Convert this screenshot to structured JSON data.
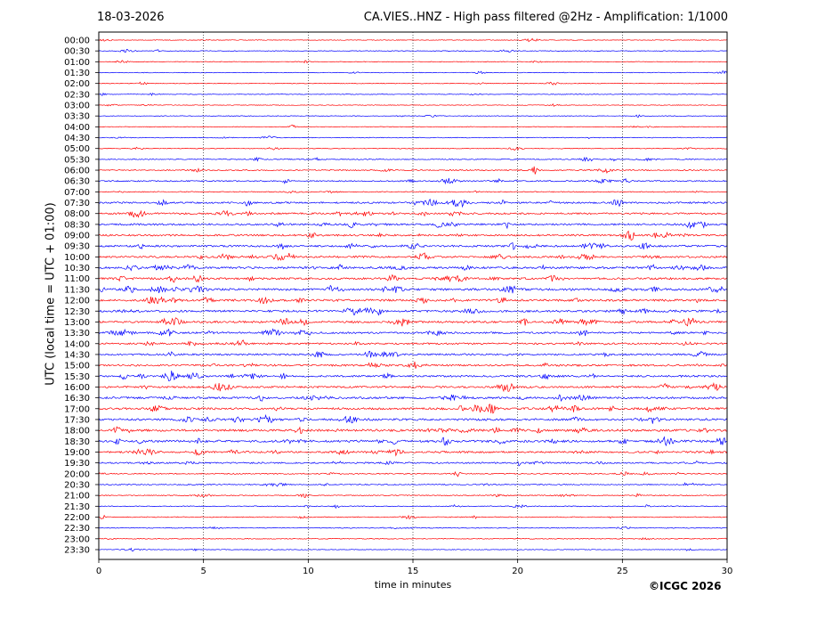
{
  "header": {
    "date": "18-03-2026",
    "title": "CA.VIES..HNZ - High pass filtered @2Hz - Amplification: 1/1000"
  },
  "footer": {
    "copyright": "©ICGC 2026"
  },
  "colors": {
    "series_a": "#ff0000",
    "series_b": "#0000ff",
    "axis": "#000000"
  },
  "chart_data": {
    "type": "line",
    "subtype": "helicorder",
    "xlabel": "time in minutes",
    "ylabel": "UTC (local time = UTC + 01:00)",
    "xlim": [
      0,
      30
    ],
    "x_ticks": [
      0,
      5,
      10,
      15,
      20,
      25,
      30
    ],
    "x_tick_labels": [
      "0",
      "5",
      "10",
      "15",
      "20",
      "25",
      "30"
    ],
    "vertical_grid": [
      5,
      10,
      15,
      20,
      25
    ],
    "grid_style": "dotted",
    "color_sequence": [
      "#ff0000",
      "#0000ff"
    ],
    "rows": [
      {
        "label": "00:00",
        "activity": 0.08,
        "color": "#ff0000"
      },
      {
        "label": "00:30",
        "activity": 0.1,
        "color": "#0000ff"
      },
      {
        "label": "01:00",
        "activity": 0.09,
        "color": "#ff0000"
      },
      {
        "label": "01:30",
        "activity": 0.1,
        "color": "#0000ff"
      },
      {
        "label": "02:00",
        "activity": 0.1,
        "color": "#ff0000"
      },
      {
        "label": "02:30",
        "activity": 0.08,
        "color": "#0000ff"
      },
      {
        "label": "03:00",
        "activity": 0.07,
        "color": "#ff0000"
      },
      {
        "label": "03:30",
        "activity": 0.07,
        "color": "#0000ff"
      },
      {
        "label": "04:00",
        "activity": 0.07,
        "color": "#ff0000"
      },
      {
        "label": "04:30",
        "activity": 0.14,
        "color": "#0000ff"
      },
      {
        "label": "05:00",
        "activity": 0.12,
        "color": "#ff0000"
      },
      {
        "label": "05:30",
        "activity": 0.22,
        "color": "#0000ff"
      },
      {
        "label": "06:00",
        "activity": 0.3,
        "color": "#ff0000"
      },
      {
        "label": "06:30",
        "activity": 0.35,
        "color": "#0000ff"
      },
      {
        "label": "07:00",
        "activity": 0.22,
        "color": "#ff0000"
      },
      {
        "label": "07:30",
        "activity": 0.55,
        "color": "#0000ff"
      },
      {
        "label": "08:00",
        "activity": 0.55,
        "color": "#ff0000"
      },
      {
        "label": "08:30",
        "activity": 0.6,
        "color": "#0000ff"
      },
      {
        "label": "09:00",
        "activity": 0.6,
        "color": "#ff0000"
      },
      {
        "label": "09:30",
        "activity": 0.62,
        "color": "#0000ff"
      },
      {
        "label": "10:00",
        "activity": 0.62,
        "color": "#ff0000"
      },
      {
        "label": "10:30",
        "activity": 0.7,
        "color": "#0000ff"
      },
      {
        "label": "11:00",
        "activity": 0.68,
        "color": "#ff0000"
      },
      {
        "label": "11:30",
        "activity": 0.75,
        "color": "#0000ff"
      },
      {
        "label": "12:00",
        "activity": 0.72,
        "color": "#ff0000"
      },
      {
        "label": "12:30",
        "activity": 0.72,
        "color": "#0000ff"
      },
      {
        "label": "13:00",
        "activity": 0.7,
        "color": "#ff0000"
      },
      {
        "label": "13:30",
        "activity": 0.62,
        "color": "#0000ff"
      },
      {
        "label": "14:00",
        "activity": 0.55,
        "color": "#ff0000"
      },
      {
        "label": "14:30",
        "activity": 0.6,
        "color": "#0000ff"
      },
      {
        "label": "15:00",
        "activity": 0.6,
        "color": "#ff0000"
      },
      {
        "label": "15:30",
        "activity": 0.62,
        "color": "#0000ff"
      },
      {
        "label": "16:00",
        "activity": 0.62,
        "color": "#ff0000"
      },
      {
        "label": "16:30",
        "activity": 0.7,
        "color": "#0000ff"
      },
      {
        "label": "17:00",
        "activity": 0.72,
        "color": "#ff0000"
      },
      {
        "label": "17:30",
        "activity": 0.72,
        "color": "#0000ff"
      },
      {
        "label": "18:00",
        "activity": 0.8,
        "color": "#ff0000"
      },
      {
        "label": "18:30",
        "activity": 0.8,
        "color": "#0000ff"
      },
      {
        "label": "19:00",
        "activity": 0.62,
        "color": "#ff0000"
      },
      {
        "label": "19:30",
        "activity": 0.45,
        "color": "#0000ff"
      },
      {
        "label": "20:00",
        "activity": 0.3,
        "color": "#ff0000"
      },
      {
        "label": "20:30",
        "activity": 0.25,
        "color": "#0000ff"
      },
      {
        "label": "21:00",
        "activity": 0.2,
        "color": "#ff0000"
      },
      {
        "label": "21:30",
        "activity": 0.18,
        "color": "#0000ff"
      },
      {
        "label": "22:00",
        "activity": 0.18,
        "color": "#ff0000"
      },
      {
        "label": "22:30",
        "activity": 0.16,
        "color": "#0000ff"
      },
      {
        "label": "23:00",
        "activity": 0.14,
        "color": "#ff0000"
      },
      {
        "label": "23:30",
        "activity": 0.1,
        "color": "#0000ff"
      }
    ]
  }
}
